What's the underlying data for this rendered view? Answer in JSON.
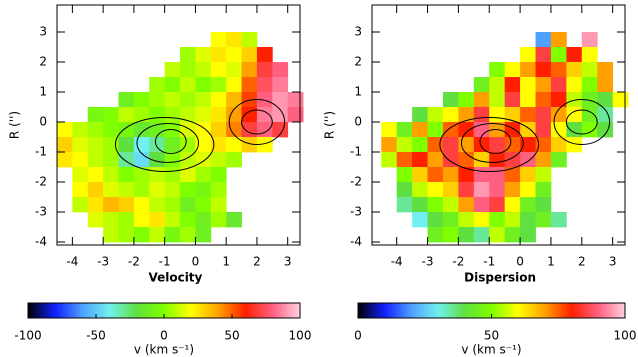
{
  "chart_data": [
    {
      "type": "heatmap",
      "x_label": "Velocity",
      "y_label": "R ('')",
      "x": [
        -4.25,
        -3.75,
        -3.25,
        -2.75,
        -2.25,
        -1.75,
        -1.25,
        -0.75,
        -0.25,
        0.25,
        0.75,
        1.25,
        1.75,
        2.25,
        2.75,
        3.25
      ],
      "y": [
        3.25,
        2.75,
        2.25,
        1.75,
        1.25,
        0.75,
        0.25,
        -0.25,
        -0.75,
        -1.25,
        -1.75,
        -2.25,
        -2.75,
        -3.25,
        -3.75
      ],
      "z": [
        [
          null,
          null,
          null,
          null,
          null,
          null,
          null,
          null,
          null,
          null,
          null,
          null,
          null,
          null,
          null,
          null
        ],
        [
          null,
          null,
          null,
          null,
          null,
          null,
          null,
          null,
          null,
          null,
          20,
          25,
          10,
          null,
          null,
          null
        ],
        [
          null,
          null,
          null,
          null,
          null,
          null,
          null,
          null,
          5,
          15,
          25,
          20,
          30,
          60,
          null,
          null
        ],
        [
          null,
          null,
          null,
          null,
          null,
          null,
          null,
          10,
          5,
          10,
          20,
          15,
          40,
          70,
          80,
          null
        ],
        [
          null,
          null,
          null,
          null,
          null,
          null,
          5,
          0,
          10,
          0,
          5,
          20,
          50,
          75,
          85,
          null
        ],
        [
          null,
          null,
          null,
          null,
          -10,
          0,
          5,
          10,
          5,
          10,
          20,
          35,
          55,
          80,
          90,
          85
        ],
        [
          null,
          null,
          -5,
          0,
          10,
          5,
          0,
          5,
          10,
          15,
          25,
          40,
          60,
          85,
          90,
          80
        ],
        [
          20,
          10,
          5,
          0,
          -5,
          -15,
          -10,
          0,
          15,
          20,
          30,
          45,
          70,
          80,
          70,
          null
        ],
        [
          30,
          15,
          10,
          5,
          -20,
          -40,
          -30,
          -10,
          5,
          20,
          25,
          20,
          30,
          20,
          null,
          null
        ],
        [
          25,
          20,
          10,
          5,
          -30,
          -45,
          -20,
          0,
          10,
          15,
          10,
          5,
          null,
          null,
          null,
          null
        ],
        [
          null,
          15,
          20,
          10,
          0,
          5,
          10,
          5,
          15,
          5,
          0,
          null,
          null,
          null,
          null,
          null
        ],
        [
          null,
          20,
          30,
          15,
          10,
          5,
          15,
          10,
          0,
          -5,
          5,
          null,
          null,
          null,
          null,
          null
        ],
        [
          null,
          10,
          25,
          35,
          30,
          20,
          10,
          5,
          -10,
          0,
          10,
          null,
          null,
          null,
          null,
          null
        ],
        [
          null,
          null,
          15,
          10,
          5,
          20,
          25,
          10,
          0,
          -10,
          5,
          -15,
          null,
          null,
          null,
          null
        ],
        [
          null,
          null,
          null,
          10,
          5,
          0,
          10,
          -5,
          5,
          -10,
          null,
          null,
          null,
          null,
          null,
          null
        ]
      ],
      "xlim": [
        -4.5,
        3.4
      ],
      "ylim": [
        -4.1,
        3.9
      ],
      "xticks": [
        -4,
        -3,
        -2,
        -1,
        0,
        1,
        2,
        3
      ],
      "yticks": [
        -4,
        -3,
        -2,
        -1,
        0,
        1,
        2,
        3
      ],
      "colorbar": {
        "lim": [
          -100,
          100
        ],
        "ticks": [
          -100,
          -50,
          0,
          50,
          100
        ],
        "label": "v (km s⁻¹)"
      },
      "colormap": [
        "#000000",
        "#1020ff",
        "#50a0ff",
        "#70f0f0",
        "#60e040",
        "#80ff00",
        "#ffff00",
        "#ffa000",
        "#ff2000",
        "#ff6080",
        "#ffd0e0"
      ]
    },
    {
      "type": "heatmap",
      "x_label": "Dispersion",
      "y_label": "R ('')",
      "x": [
        -4.25,
        -3.75,
        -3.25,
        -2.75,
        -2.25,
        -1.75,
        -1.25,
        -0.75,
        -0.25,
        0.25,
        0.75,
        1.25,
        1.75,
        2.25,
        2.75,
        3.25
      ],
      "y": [
        3.25,
        2.75,
        2.25,
        1.75,
        1.25,
        0.75,
        0.25,
        -0.25,
        -0.75,
        -1.25,
        -1.75,
        -2.25,
        -2.75,
        -3.25,
        -3.75
      ],
      "z": [
        [
          null,
          null,
          null,
          null,
          null,
          null,
          null,
          null,
          null,
          null,
          null,
          null,
          null,
          null,
          null,
          null
        ],
        [
          null,
          null,
          null,
          null,
          null,
          null,
          null,
          null,
          null,
          null,
          20,
          70,
          null,
          95,
          null,
          null
        ],
        [
          null,
          null,
          null,
          null,
          null,
          null,
          null,
          null,
          null,
          60,
          85,
          50,
          80,
          60,
          null,
          null
        ],
        [
          null,
          null,
          null,
          null,
          null,
          null,
          null,
          50,
          60,
          70,
          80,
          75,
          65,
          55,
          70,
          null
        ],
        [
          null,
          null,
          null,
          null,
          null,
          null,
          45,
          55,
          80,
          60,
          70,
          85,
          60,
          50,
          70,
          null
        ],
        [
          null,
          null,
          null,
          null,
          40,
          50,
          70,
          55,
          85,
          60,
          75,
          80,
          55,
          45,
          40,
          60
        ],
        [
          null,
          null,
          40,
          55,
          60,
          70,
          85,
          60,
          65,
          75,
          85,
          70,
          60,
          45,
          35,
          null
        ],
        [
          60,
          45,
          70,
          50,
          75,
          80,
          90,
          70,
          80,
          65,
          85,
          60,
          40,
          50,
          40,
          null
        ],
        [
          70,
          55,
          50,
          75,
          85,
          70,
          80,
          85,
          75,
          80,
          75,
          65,
          60,
          null,
          null,
          null
        ],
        [
          55,
          75,
          80,
          70,
          85,
          75,
          65,
          80,
          85,
          90,
          70,
          45,
          null,
          null,
          null,
          null
        ],
        [
          null,
          50,
          65,
          75,
          70,
          80,
          90,
          90,
          75,
          65,
          55,
          null,
          null,
          null,
          null,
          null
        ],
        [
          null,
          40,
          55,
          60,
          65,
          85,
          95,
          90,
          70,
          60,
          45,
          null,
          null,
          null,
          null,
          null
        ],
        [
          null,
          35,
          40,
          50,
          55,
          70,
          90,
          85,
          60,
          45,
          40,
          null,
          null,
          null,
          null,
          null
        ],
        [
          null,
          null,
          30,
          40,
          45,
          55,
          60,
          50,
          55,
          40,
          45,
          35,
          null,
          null,
          null,
          null
        ],
        [
          null,
          null,
          null,
          45,
          50,
          40,
          35,
          55,
          45,
          40,
          null,
          null,
          null,
          null,
          null,
          null
        ]
      ],
      "xlim": [
        -4.8,
        3.4
      ],
      "ylim": [
        -4.1,
        3.9
      ],
      "xticks": [
        -4,
        -3,
        -2,
        -1,
        0,
        1,
        2,
        3
      ],
      "yticks": [
        -4,
        -3,
        -2,
        -1,
        0,
        1,
        2,
        3
      ],
      "colorbar": {
        "lim": [
          0,
          100
        ],
        "ticks": [
          0,
          50,
          100
        ],
        "label": "v (km s⁻¹)"
      },
      "colormap": [
        "#000000",
        "#1020ff",
        "#50a0ff",
        "#70f0f0",
        "#60e040",
        "#80ff00",
        "#ffff00",
        "#ffa000",
        "#ff2000",
        "#ff6080",
        "#ffd0e0"
      ]
    }
  ]
}
